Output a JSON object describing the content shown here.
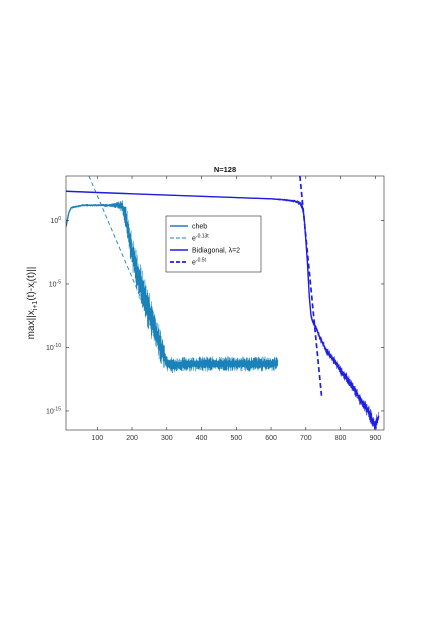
{
  "chart_data": {
    "type": "line",
    "title": "N=128",
    "ylabel": "max||x_{i+1}(t)-x_i(t)||",
    "ylabel_parts": {
      "a": "max||x",
      "s1": "i+1",
      "b": "(t)-x",
      "s2": "i",
      "c": "(t)||"
    },
    "xlim": [
      10,
      925
    ],
    "ylim_log10": [
      -16.5,
      3.5
    ],
    "yscale": "log",
    "grid": false,
    "legend_position": "inside-center",
    "x_ticks": [
      100,
      200,
      300,
      400,
      500,
      600,
      700,
      800,
      900
    ],
    "x_tick_labels": [
      "100",
      "200",
      "300",
      "400",
      "500",
      "600",
      "700",
      "800",
      "900"
    ],
    "y_ticks_log10": [
      0,
      -5,
      -10,
      -15
    ],
    "y_tick_labels": [
      {
        "base": "10",
        "exp": "0"
      },
      {
        "base": "10",
        "exp": "-5"
      },
      {
        "base": "10",
        "exp": "-10"
      },
      {
        "base": "10",
        "exp": "-15"
      }
    ],
    "series": [
      {
        "name": "cheb",
        "style": "solid",
        "color": "#1a82b8",
        "x": [
          10,
          18,
          25,
          40,
          60,
          80,
          100,
          120,
          140,
          150,
          160,
          170,
          180,
          190,
          200,
          220,
          240,
          260,
          280,
          295,
          300,
          320,
          360,
          400,
          450,
          500,
          550,
          600,
          620
        ],
        "y_log10": [
          -0.5,
          0.6,
          1.0,
          1.1,
          1.2,
          1.2,
          1.2,
          1.2,
          1.2,
          1.2,
          1.2,
          1.15,
          0.5,
          -1.0,
          -2.6,
          -4.6,
          -6.4,
          -8.1,
          -9.8,
          -10.8,
          -11.2,
          -11.4,
          -11.3,
          -11.3,
          -11.3,
          -11.3,
          -11.3,
          -11.3,
          -11.2
        ],
        "band_log10": [
          0,
          0.1,
          0.1,
          0.1,
          0.1,
          0.1,
          0.1,
          0.15,
          0.15,
          0.2,
          0.3,
          0.5,
          1.0,
          1.4,
          1.5,
          1.6,
          1.7,
          1.6,
          1.4,
          1.0,
          0.7,
          0.6,
          0.6,
          0.6,
          0.6,
          0.6,
          0.6,
          0.6,
          0.5
        ]
      },
      {
        "name": "e^{-0.13t}",
        "label_base": "e",
        "label_exp": "-0.13t",
        "style": "dashed",
        "color": "#1a82b8",
        "x": [
          76,
          320
        ],
        "y_log10": [
          3.5,
          -12.2
        ]
      },
      {
        "name": "Bidiagonal, λ=2",
        "style": "solid",
        "color": "#1f1fe0",
        "x": [
          10,
          100,
          200,
          300,
          400,
          500,
          600,
          640,
          660,
          670,
          680,
          690,
          695,
          700,
          705,
          710,
          715,
          720,
          725,
          730,
          740,
          760,
          780,
          800,
          820,
          840,
          860,
          880,
          890,
          895,
          900,
          905,
          910
        ],
        "y_log10": [
          2.3,
          2.2,
          2.1,
          2.0,
          1.9,
          1.8,
          1.7,
          1.62,
          1.55,
          1.5,
          1.4,
          1.1,
          0.3,
          -1.5,
          -3.5,
          -6.0,
          -7.5,
          -8.0,
          -8.2,
          -8.5,
          -9.2,
          -10.3,
          -11.0,
          -11.8,
          -12.5,
          -13.3,
          -14.3,
          -15.0,
          -15.6,
          -16.0,
          -16.2,
          -15.8,
          -15.4
        ],
        "band_log10": [
          0.02,
          0.02,
          0.02,
          0.02,
          0.02,
          0.02,
          0.03,
          0.05,
          0.1,
          0.15,
          0.2,
          0.3,
          0.3,
          0.2,
          0.2,
          0.2,
          0.2,
          0.2,
          0.2,
          0.2,
          0.3,
          0.35,
          0.4,
          0.4,
          0.45,
          0.45,
          0.5,
          0.55,
          0.6,
          0.6,
          0.6,
          0.6,
          0.5
        ]
      },
      {
        "name": "e^{-0.5t}",
        "label_base": "e",
        "label_exp": "-0.5t",
        "style": "dashed",
        "color": "#1f1fe0",
        "x": [
          683,
          745
        ],
        "y_log10": [
          3.5,
          -13.8
        ]
      }
    ],
    "legend": [
      {
        "label": "cheb",
        "series": 0
      },
      {
        "label": "e",
        "exp": "-0.13t",
        "series": 1
      },
      {
        "label": "Bidiagonal,  λ=2",
        "series": 2
      },
      {
        "label": "e",
        "exp": "-0.5t",
        "series": 3
      }
    ]
  }
}
